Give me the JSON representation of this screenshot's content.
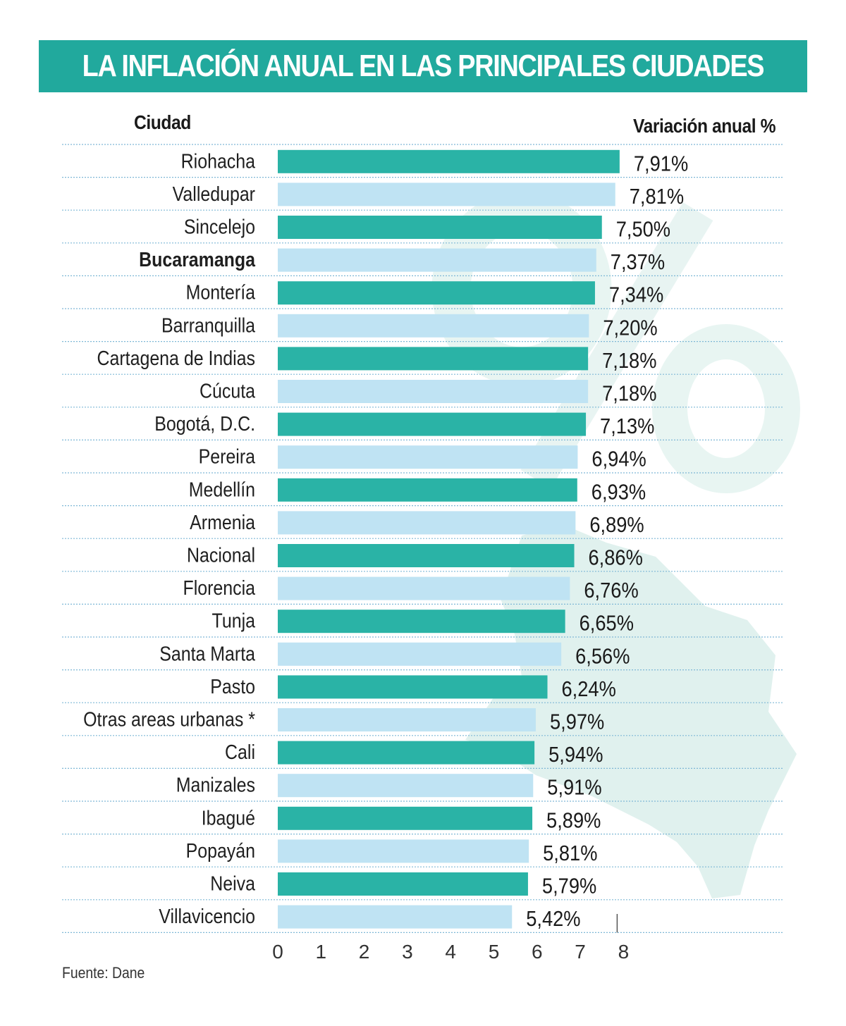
{
  "chart_data": {
    "type": "bar",
    "orientation": "horizontal",
    "title": "LA INFLACIÓN ANUAL EN LAS PRINCIPALES CIUDADES",
    "category_header": "Ciudad",
    "value_header": "Variación anual %",
    "categories": [
      "Riohacha",
      "Valledupar",
      "Sincelejo",
      "Bucaramanga",
      "Montería",
      "Barranquilla",
      "Cartagena de Indias",
      "Cúcuta",
      "Bogotá, D.C.",
      "Pereira",
      "Medellín",
      "Armenia",
      "Nacional",
      "Florencia",
      "Tunja",
      "Santa Marta",
      "Pasto",
      "Otras areas urbanas *",
      "Cali",
      "Manizales",
      "Ibagué",
      "Popayán",
      "Neiva",
      "Villavicencio"
    ],
    "values": [
      7.91,
      7.81,
      7.5,
      7.37,
      7.34,
      7.2,
      7.18,
      7.18,
      7.13,
      6.94,
      6.93,
      6.89,
      6.86,
      6.76,
      6.65,
      6.56,
      6.24,
      5.97,
      5.94,
      5.91,
      5.89,
      5.81,
      5.79,
      5.42
    ],
    "value_labels": [
      "7,91%",
      "7,81%",
      "7,50%",
      "7,37%",
      "7,34%",
      "7,20%",
      "7,18%",
      "7,18%",
      "7,13%",
      "6,94%",
      "6,93%",
      "6,89%",
      "6,86%",
      "6,76%",
      "6,65%",
      "6,56%",
      "6,24%",
      "5,97%",
      "5,94%",
      "5,91%",
      "5,89%",
      "5,81%",
      "5,79%",
      "5,42%"
    ],
    "highlighted_category": "Bucaramanga",
    "x_ticks": [
      "0",
      "1",
      "2",
      "3",
      "4",
      "5",
      "6",
      "7",
      "8"
    ],
    "xlim": [
      0,
      8
    ],
    "grid": false,
    "legend": "none",
    "colors": {
      "bar_dark": "#2ab3a6",
      "bar_light": "#bfe3f3",
      "title_band": "#21a99d",
      "watermark": "#d6ece8"
    }
  },
  "source": "Fuente: Dane"
}
